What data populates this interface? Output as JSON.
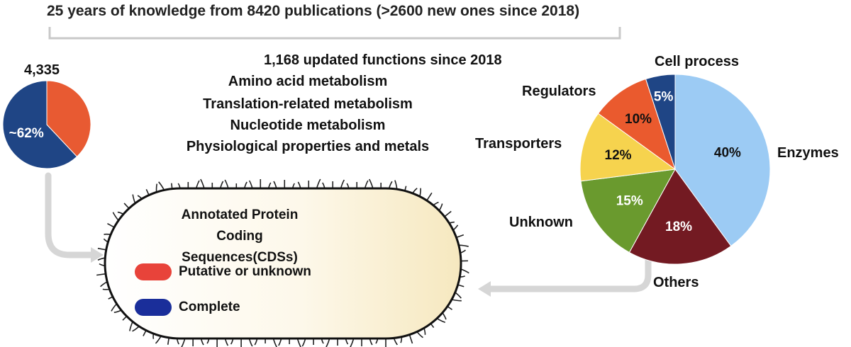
{
  "title": "25 years of knowledge from 8420 publications (>2600 new ones since 2018)",
  "small_pie": {
    "total_label": "4,335",
    "slices": [
      {
        "label": "~62%",
        "value": 62,
        "color": "#1f4585"
      },
      {
        "label": "",
        "value": 38,
        "color": "#e85a32"
      }
    ]
  },
  "updated": {
    "title": "1,168 updated functions since 2018",
    "functions": [
      "Amino acid metabolism",
      "Translation-related metabolism",
      "Nucleotide metabolism",
      "Physiological properties and metals"
    ]
  },
  "cell": {
    "title": "Annotated Protein Coding Sequences(CDSs)",
    "legend": [
      {
        "label": "Putative or unknown",
        "color": "#e8433a"
      },
      {
        "label": "Complete",
        "color": "#1a2e9a"
      }
    ]
  },
  "big_pie": {
    "slices": [
      {
        "name": "Enzymes",
        "label": "40%",
        "value": 40,
        "color": "#9ccbf4"
      },
      {
        "name": "Others",
        "label": "18%",
        "value": 18,
        "color": "#731a22"
      },
      {
        "name": "Unknown",
        "label": "15%",
        "value": 15,
        "color": "#6a9a2e"
      },
      {
        "name": "Transporters",
        "label": "12%",
        "value": 12,
        "color": "#f6d34e"
      },
      {
        "name": "Regulators",
        "label": "10%",
        "value": 10,
        "color": "#ea5a2e"
      },
      {
        "name": "Cell process",
        "label": "5%",
        "value": 5,
        "color": "#1f4585"
      }
    ]
  }
}
